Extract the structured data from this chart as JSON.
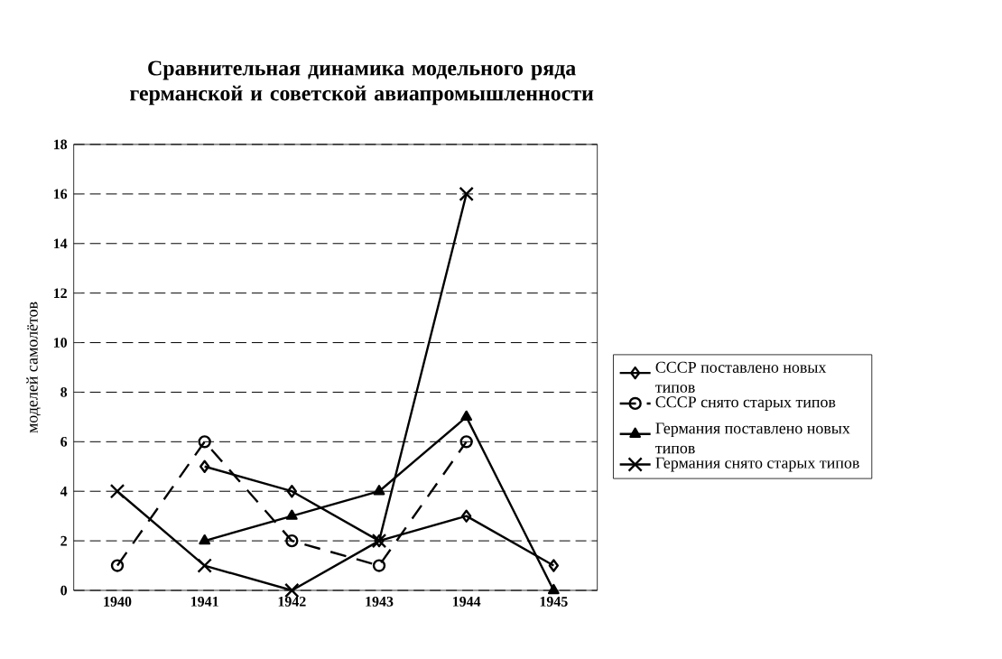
{
  "chart_data": {
    "type": "line",
    "title": "Сравнительная динамика модельного ряда германской и советской авиапромышленности",
    "ylabel": "моделей самолётов",
    "categories": [
      "1940",
      "1941",
      "1942",
      "1943",
      "1944",
      "1945"
    ],
    "series": [
      {
        "name": "СССР    поставлено новых типов",
        "color": "#000000",
        "marker": "diamond",
        "line_style": "solid",
        "values": [
          null,
          5,
          4,
          2,
          3,
          1
        ]
      },
      {
        "name": "СССР    снято старых типов",
        "color": "#000000",
        "marker": "circle",
        "line_style": "dashed",
        "values": [
          1,
          6,
          2,
          1,
          6,
          null
        ]
      },
      {
        "name": "Германия    поставлено новых типов",
        "color": "#000000",
        "marker": "triangle",
        "line_style": "solid",
        "values": [
          null,
          2,
          3,
          4,
          7,
          0
        ]
      },
      {
        "name": "Германия    снято старых типов",
        "color": "#000000",
        "marker": "cross",
        "line_style": "solid",
        "values": [
          4,
          1,
          0,
          2,
          16,
          null
        ]
      }
    ],
    "ylim": [
      0,
      18
    ],
    "yticks": [
      0,
      2,
      4,
      6,
      8,
      10,
      12,
      14,
      16,
      18
    ],
    "grid": "y",
    "legend": "right"
  }
}
